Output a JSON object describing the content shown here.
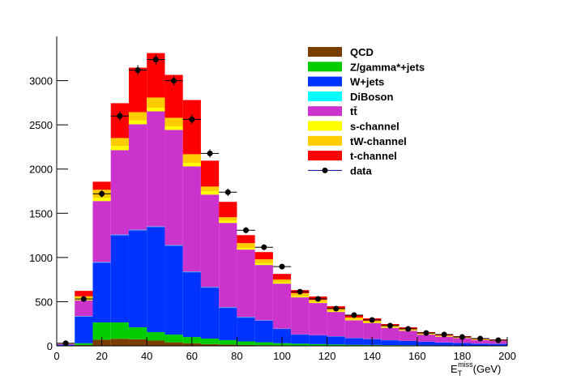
{
  "chart_data": {
    "type": "histogram",
    "bins": [
      0,
      8,
      16,
      24,
      32,
      40,
      48,
      56,
      64,
      72,
      80,
      88,
      96,
      104,
      112,
      120,
      128,
      136,
      144,
      152,
      160,
      168,
      176,
      184,
      192,
      200
    ],
    "xlim": [
      0,
      200
    ],
    "xticks": [
      0,
      20,
      40,
      60,
      80,
      100,
      120,
      140,
      160,
      180,
      200
    ],
    "ylim": [
      0,
      3500
    ],
    "yticks": [
      0,
      500,
      1000,
      1500,
      2000,
      2500,
      3000
    ],
    "xlabel": {
      "base": "E",
      "sub": "T",
      "sup": "miss",
      "unit": "(GeV)"
    },
    "stacked": true,
    "legend": "top-right",
    "series": [
      {
        "name": "QCD",
        "color": "#7a3d00",
        "values": [
          2,
          10,
          70,
          80,
          75,
          60,
          40,
          30,
          20,
          15,
          10,
          8,
          6,
          5,
          4,
          3,
          2,
          2,
          1,
          1,
          1,
          1,
          1,
          0,
          0
        ]
      },
      {
        "name": "Z/gamma*+jets",
        "color": "#00cc00",
        "values": [
          3,
          20,
          195,
          185,
          135,
          95,
          88,
          70,
          62,
          50,
          40,
          32,
          24,
          20,
          16,
          13,
          10,
          9,
          7,
          6,
          5,
          4,
          3,
          3,
          2
        ]
      },
      {
        "name": "W+jets",
        "color": "#0033ff",
        "values": [
          8,
          300,
          677,
          988,
          1098,
          1190,
          1006,
          733,
          577,
          365,
          270,
          244,
          162,
          103,
          99,
          90,
          75,
          65,
          55,
          48,
          40,
          33,
          28,
          22,
          20
        ]
      },
      {
        "name": "DiBoson",
        "color": "#00ffff",
        "values": [
          0,
          5,
          5,
          5,
          5,
          5,
          5,
          5,
          5,
          5,
          5,
          4,
          3,
          2,
          2,
          2,
          2,
          1,
          1,
          1,
          1,
          1,
          1,
          1,
          1
        ]
      },
      {
        "name": "tt̄",
        "color": "#cc33cc",
        "values": [
          8,
          180,
          691,
          956,
          1194,
          1303,
          1304,
          1193,
          1047,
          956,
          764,
          627,
          509,
          419,
          364,
          276,
          200,
          180,
          140,
          115,
          80,
          65,
          55,
          40,
          35
        ]
      },
      {
        "name": "s-channel",
        "color": "#ffff00",
        "values": [
          1,
          10,
          36,
          46,
          43,
          40,
          40,
          40,
          40,
          25,
          20,
          18,
          15,
          12,
          10,
          8,
          7,
          6,
          5,
          4,
          3,
          3,
          2,
          2,
          2
        ]
      },
      {
        "name": "tW-channel",
        "color": "#ffcc00",
        "values": [
          3,
          36,
          92,
          91,
          94,
          116,
          97,
          97,
          51,
          39,
          53,
          46,
          31,
          34,
          26,
          29,
          25,
          22,
          18,
          16,
          12,
          10,
          9,
          7,
          6
        ]
      },
      {
        "name": "t-channel",
        "color": "#ff0000",
        "values": [
          5,
          61,
          91,
          394,
          503,
          503,
          485,
          613,
          293,
          174,
          91,
          82,
          64,
          36,
          37,
          27,
          27,
          26,
          20,
          19,
          14,
          11,
          11,
          7,
          7
        ]
      }
    ],
    "data": {
      "name": "data",
      "color": "#000000",
      "values": [
        30,
        530,
        1720,
        2600,
        3120,
        3239,
        3000,
        2562,
        2177,
        1738,
        1308,
        1116,
        897,
        613,
        531,
        421,
        348,
        293,
        229,
        192,
        146,
        128,
        101,
        82,
        64
      ],
      "errors": [
        5,
        23,
        41,
        51,
        56,
        57,
        55,
        51,
        47,
        42,
        36,
        33,
        30,
        25,
        23,
        21,
        19,
        17,
        15,
        14,
        12,
        11,
        10,
        9,
        8
      ]
    }
  }
}
